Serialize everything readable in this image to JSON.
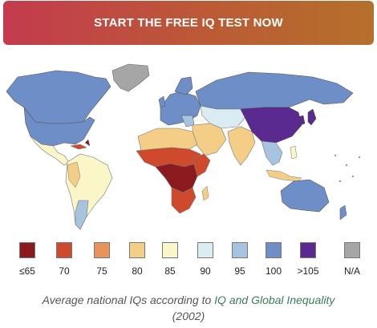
{
  "cta": {
    "label": "START THE FREE IQ TEST NOW"
  },
  "map": {
    "background": "#ffffff",
    "ocean_color": "#ffffff"
  },
  "legend": [
    {
      "label": "≤65",
      "color": "#8b1a1f"
    },
    {
      "label": "70",
      "color": "#cf4a2c"
    },
    {
      "label": "75",
      "color": "#e8935a"
    },
    {
      "label": "80",
      "color": "#f4cd86"
    },
    {
      "label": "85",
      "color": "#fbf6c8"
    },
    {
      "label": "90",
      "color": "#d9ecf2"
    },
    {
      "label": "95",
      "color": "#a6c4e0"
    },
    {
      "label": "100",
      "color": "#6d8ec7"
    },
    {
      "label": ">105",
      "color": "#5a2a91"
    },
    {
      "label": "N/A",
      "color": "#a6a6a6"
    }
  ],
  "caption": {
    "prefix": "Average national IQs according to ",
    "link": "IQ and Global Inequality",
    "suffix": "(2002)"
  }
}
